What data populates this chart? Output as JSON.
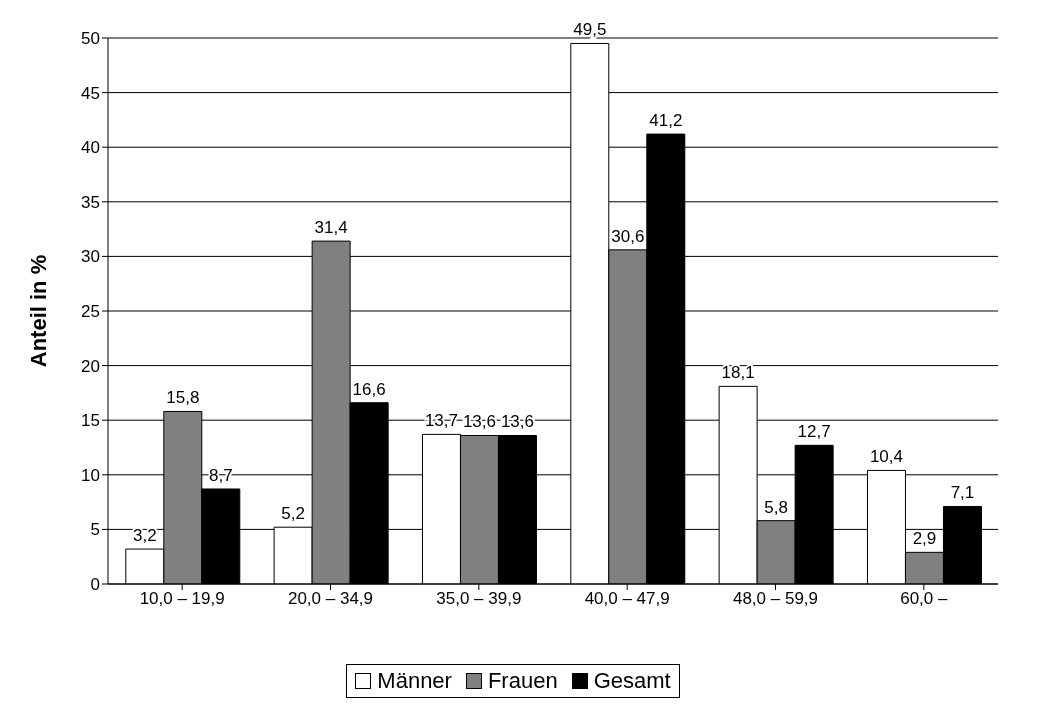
{
  "chart_data": {
    "type": "bar",
    "ylabel": "Anteil in %",
    "categories": [
      "10,0 – 19,9",
      "20,0 – 34,9",
      "35,0 – 39,9",
      "40,0 – 47,9",
      "48,0 – 59,9",
      "60,0 –"
    ],
    "series": [
      {
        "name": "Männer",
        "color": "#ffffff",
        "values": [
          3.2,
          5.2,
          13.7,
          49.5,
          18.1,
          10.4
        ],
        "value_labels": [
          "3,2",
          "5,2",
          "13,7",
          "49,5",
          "18,1",
          "10,4"
        ]
      },
      {
        "name": "Frauen",
        "color": "#808080",
        "values": [
          15.8,
          31.4,
          13.6,
          30.6,
          5.8,
          2.9
        ],
        "value_labels": [
          "15,8",
          "31,4",
          "13,6",
          "30,6",
          "5,8",
          "2,9"
        ]
      },
      {
        "name": "Gesamt",
        "color": "#000000",
        "values": [
          8.7,
          16.6,
          13.6,
          41.2,
          12.7,
          7.1
        ],
        "value_labels": [
          "8,7",
          "16,6",
          "13,6",
          "41,2",
          "12,7",
          "7,1"
        ]
      }
    ],
    "ylim": [
      0,
      50
    ],
    "yticks": [
      0,
      5,
      10,
      15,
      20,
      25,
      30,
      35,
      40,
      45,
      50
    ],
    "grid": "y",
    "legend": "bottom"
  }
}
